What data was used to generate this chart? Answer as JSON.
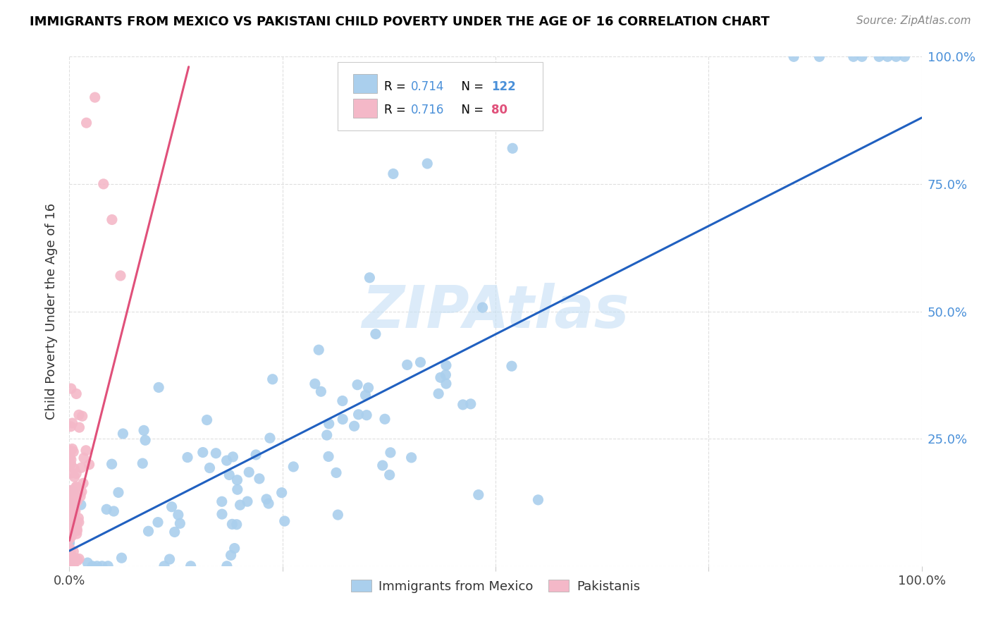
{
  "title": "IMMIGRANTS FROM MEXICO VS PAKISTANI CHILD POVERTY UNDER THE AGE OF 16 CORRELATION CHART",
  "source": "Source: ZipAtlas.com",
  "ylabel": "Child Poverty Under the Age of 16",
  "xlim": [
    0,
    1.0
  ],
  "ylim": [
    0,
    1.0
  ],
  "legend_blue_r": "0.714",
  "legend_blue_n": "122",
  "legend_pink_r": "0.716",
  "legend_pink_n": "80",
  "blue_scatter_color": "#aacfed",
  "pink_scatter_color": "#f4b8c8",
  "blue_line_color": "#2060c0",
  "pink_line_color": "#e0507a",
  "watermark_color": "#c5dff5",
  "grid_color": "#d8d8d8",
  "right_tick_color": "#4a90d9",
  "title_fontsize": 13,
  "source_fontsize": 11,
  "tick_fontsize": 13,
  "ylabel_fontsize": 13,
  "legend_fontsize": 12,
  "watermark_fontsize": 60,
  "blue_line_start_x": 0.0,
  "blue_line_start_y": 0.03,
  "blue_line_end_x": 1.0,
  "blue_line_end_y": 0.88,
  "pink_line_start_x": 0.0,
  "pink_line_start_y": 0.05,
  "pink_line_end_x": 0.14,
  "pink_line_end_y": 0.98
}
